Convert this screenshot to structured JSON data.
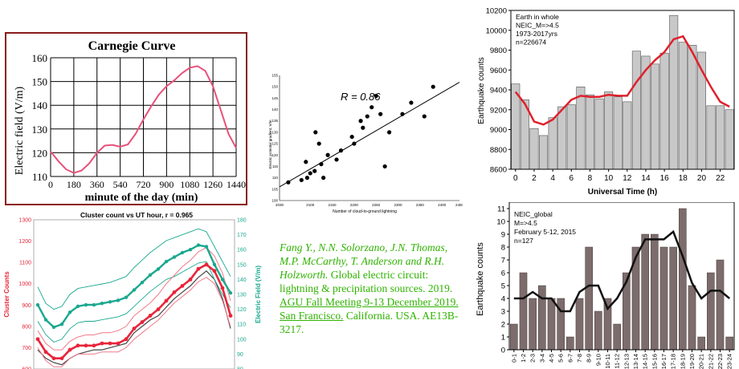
{
  "chart_data": [
    {
      "type": "line",
      "title": "Carnegie Curve",
      "xlabel": "minute of the day (min)",
      "ylabel": "Electric field (V/m)",
      "xlim": [
        0,
        1440
      ],
      "ylim": [
        110,
        160
      ],
      "xticks": [
        "0",
        "180",
        "360",
        "540",
        "720",
        "900",
        "1080",
        "1260",
        "1440"
      ],
      "yticks": [
        "110",
        "120",
        "130",
        "140",
        "150",
        "160"
      ],
      "x": [
        0,
        60,
        120,
        180,
        240,
        300,
        360,
        420,
        480,
        540,
        600,
        660,
        720,
        780,
        840,
        900,
        960,
        1020,
        1080,
        1140,
        1200,
        1260,
        1320,
        1380,
        1440
      ],
      "y": [
        120.5,
        116.5,
        113,
        111.5,
        112.5,
        115.5,
        120,
        123,
        123.3,
        122.5,
        123.5,
        128,
        134,
        139.5,
        144.5,
        148,
        150.5,
        153.5,
        155.8,
        156.5,
        154.5,
        148,
        138,
        128,
        122
      ],
      "reference_line": 120,
      "grid": true,
      "line_color": "#e8517a"
    },
    {
      "type": "scatter",
      "annotation": "R = 0.86",
      "xlabel": "Number of cloud-to-ground lightning",
      "ylabel": "Electric potential gradient, V/m",
      "xlim": [
        2030,
        2440
      ],
      "ylim": [
        100,
        155
      ],
      "xticks": [
        "2030",
        "2100",
        "2150",
        "2200",
        "2250",
        "2300",
        "2350",
        "2400",
        "2450"
      ],
      "yticks": [
        "100",
        "105",
        "110",
        "115",
        "120",
        "125",
        "130",
        "135",
        "140",
        "145",
        "150",
        "155"
      ],
      "points": [
        [
          2050,
          108
        ],
        [
          2080,
          109
        ],
        [
          2090,
          117
        ],
        [
          2093,
          110
        ],
        [
          2100,
          112
        ],
        [
          2110,
          113
        ],
        [
          2112,
          130
        ],
        [
          2120,
          125
        ],
        [
          2125,
          116
        ],
        [
          2130,
          110
        ],
        [
          2140,
          120
        ],
        [
          2160,
          118
        ],
        [
          2170,
          122
        ],
        [
          2195,
          128
        ],
        [
          2200,
          125
        ],
        [
          2215,
          135
        ],
        [
          2220,
          132
        ],
        [
          2230,
          137
        ],
        [
          2240,
          141
        ],
        [
          2250,
          146
        ],
        [
          2260,
          138
        ],
        [
          2270,
          115
        ],
        [
          2280,
          130
        ],
        [
          2310,
          138
        ],
        [
          2330,
          143
        ],
        [
          2360,
          137
        ],
        [
          2380,
          150
        ]
      ],
      "fit": [
        [
          2030,
          106
        ],
        [
          2440,
          152
        ]
      ]
    },
    {
      "type": "bar",
      "legend_text": [
        "Earth in whole",
        "NEIC_M=>4.5",
        "1973-2017yrs",
        "n=226674"
      ],
      "xlabel": "Universal Time (h)",
      "ylabel": "Earthquake counts",
      "xlim": [
        -0.5,
        23.5
      ],
      "ylim": [
        8600,
        10200
      ],
      "xticks": [
        "0",
        "2",
        "4",
        "6",
        "8",
        "10",
        "12",
        "14",
        "16",
        "18",
        "20",
        "22"
      ],
      "yticks": [
        "8600",
        "8800",
        "9000",
        "9200",
        "9400",
        "9600",
        "9800",
        "10000",
        "10200"
      ],
      "hours": [
        0,
        1,
        2,
        3,
        4,
        5,
        6,
        7,
        8,
        9,
        10,
        11,
        12,
        13,
        14,
        15,
        16,
        17,
        18,
        19,
        20,
        21,
        22,
        23
      ],
      "values": [
        9460,
        9300,
        9010,
        8940,
        9120,
        9230,
        9250,
        9430,
        9350,
        9310,
        9380,
        9330,
        9280,
        9790,
        9740,
        9660,
        9770,
        10150,
        9880,
        9850,
        9780,
        9240,
        9240,
        9200
      ],
      "smooth": [
        9380,
        9260,
        9080,
        9050,
        9100,
        9200,
        9300,
        9340,
        9330,
        9330,
        9350,
        9340,
        9340,
        9480,
        9600,
        9700,
        9780,
        9910,
        9940,
        9780,
        9600,
        9430,
        9280,
        9230
      ],
      "bar_color": "#c8c8c8",
      "line_color": "#e0202c"
    },
    {
      "type": "bar",
      "legend_text": [
        "NEIC_global",
        "M=>4.5",
        "February 5-12, 2015",
        "n=127"
      ],
      "ylabel": "Earthquake counts",
      "ylim": [
        0,
        11.5
      ],
      "yticks": [
        "0",
        "1",
        "2",
        "3",
        "4",
        "5",
        "6",
        "7",
        "8",
        "9",
        "10",
        "11"
      ],
      "categories": [
        "0-1",
        "1-2",
        "2-3",
        "3-4",
        "4-5",
        "5-6",
        "6-7",
        "7-8",
        "8-9",
        "9-10",
        "10-11",
        "11-12",
        "12-13",
        "13-14",
        "14-15",
        "15-16",
        "16-17",
        "17-18",
        "18-19",
        "19-20",
        "20-21",
        "21-22",
        "22-23",
        "23-24"
      ],
      "values": [
        2,
        6,
        4,
        5,
        4,
        4,
        1,
        4,
        8,
        3,
        4,
        2,
        6,
        8,
        9,
        9,
        8,
        8,
        11,
        5,
        1,
        6,
        7,
        1
      ],
      "smooth": [
        4,
        4,
        4.5,
        4,
        4,
        3,
        3,
        4.5,
        5,
        5,
        3.2,
        4,
        5.3,
        7.2,
        8.6,
        8.6,
        8.6,
        9.2,
        7.3,
        5.2,
        4,
        4.6,
        4.6,
        4
      ],
      "bar_color": "#7d6c6c",
      "line_color": "#111111"
    },
    {
      "type": "line",
      "title": "Cluster count vs UT hour, r = 0.965",
      "ylabel": "Cluster Counts",
      "y2label": "Electric Field (V/m)",
      "ylim": [
        600,
        1300
      ],
      "y2lim": [
        80,
        180
      ],
      "yticks": [
        "600",
        "700",
        "800",
        "900",
        "1000",
        "1100",
        "1200",
        "1300"
      ],
      "y2ticks": [
        "80",
        "90",
        "100",
        "110",
        "120",
        "130",
        "140",
        "150",
        "160",
        "170",
        "180"
      ],
      "hours": [
        0,
        1,
        2,
        3,
        4,
        5,
        6,
        7,
        8,
        9,
        10,
        11,
        12,
        13,
        14,
        15,
        16,
        17,
        18,
        19,
        20,
        21,
        22,
        23,
        24
      ],
      "red_main": [
        740,
        680,
        650,
        650,
        690,
        710,
        710,
        710,
        720,
        720,
        720,
        740,
        790,
        820,
        850,
        880,
        920,
        960,
        990,
        1020,
        1070,
        1090,
        1060,
        980,
        850
      ],
      "red_upper": [
        780,
        720,
        690,
        690,
        730,
        750,
        760,
        760,
        770,
        770,
        780,
        800,
        850,
        880,
        910,
        950,
        1000,
        1040,
        1080,
        1110,
        1150,
        1170,
        1130,
        1050,
        920
      ],
      "red_lower": [
        700,
        640,
        610,
        610,
        650,
        670,
        670,
        670,
        680,
        680,
        680,
        700,
        740,
        770,
        800,
        830,
        870,
        910,
        940,
        970,
        1010,
        1030,
        1000,
        920,
        800
      ],
      "gray": [
        690,
        650,
        630,
        620,
        650,
        670,
        680,
        690,
        690,
        700,
        710,
        720,
        770,
        800,
        830,
        850,
        890,
        930,
        960,
        990,
        1030,
        1060,
        1020,
        930,
        790
      ],
      "teal_main": [
        123,
        113,
        108,
        110,
        118,
        122,
        123,
        123,
        124,
        125,
        126,
        128,
        133,
        138,
        143,
        147,
        152,
        155,
        158,
        160,
        163,
        162,
        150,
        140,
        131
      ],
      "teal_upper": [
        135,
        124,
        120,
        122,
        130,
        134,
        135,
        136,
        137,
        138,
        140,
        142,
        148,
        153,
        158,
        162,
        166,
        168,
        170,
        172,
        174,
        172,
        162,
        152,
        142
      ],
      "teal_lower": [
        112,
        103,
        98,
        100,
        107,
        111,
        112,
        112,
        113,
        114,
        115,
        117,
        122,
        127,
        132,
        136,
        140,
        142,
        145,
        148,
        151,
        152,
        140,
        130,
        121
      ],
      "red_color": "#e8253a",
      "teal_color": "#1aa88f"
    }
  ],
  "citation": {
    "authors": "Fang Y., N.N. Solorzano, J.N. Thomas, M.P. McCarthy, T. Anderson and R.H. Holzworth.",
    "title": "Global electric circuit: lightning & precipitation sources. 2019.",
    "venue": "AGU Fall Meeting 9-13 December 2019. San Francisco.",
    "location": "California. USA. AE13B-3217."
  }
}
